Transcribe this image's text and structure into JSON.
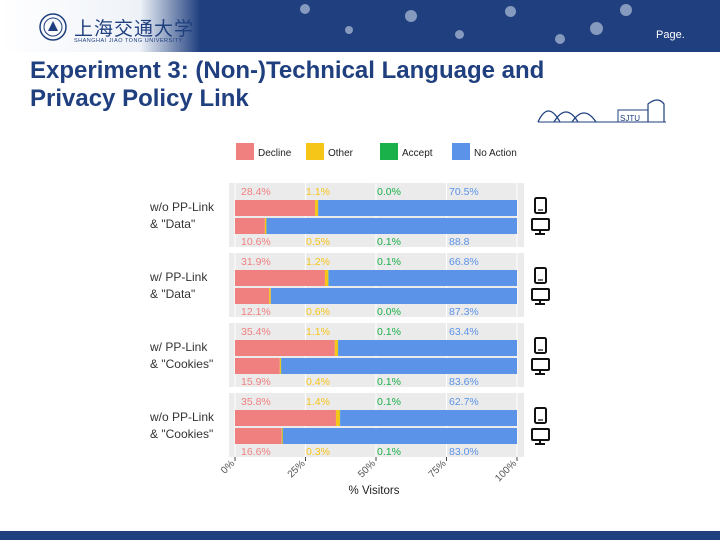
{
  "header": {
    "logo_cn": "上海交通大学",
    "logo_en": "SHANGHAI JIAO TONG UNIVERSITY",
    "page_label": "Page."
  },
  "slide": {
    "title_line1": "Experiment 3: (Non-)Technical Language and",
    "title_line2": "Privacy Policy Link",
    "sketch_label": "SJTU"
  },
  "colors": {
    "brand": "#1f3f7f",
    "decline": "#f08080",
    "other": "#f5c518",
    "accept": "#1ab04a",
    "no_action": "#5b93e8",
    "panel": "#ebebeb"
  },
  "chart_data": {
    "type": "bar",
    "orientation": "horizontal",
    "stacked": true,
    "xlabel": "% Visitors",
    "xlim": [
      0,
      100
    ],
    "xticks": [
      "0%",
      "25%",
      "50%",
      "75%",
      "100%"
    ],
    "legend": [
      "Decline",
      "Other",
      "Accept",
      "No Action"
    ],
    "legend_position": "top",
    "groups": [
      {
        "label_line1": "w/o PP-Link",
        "label_line2": "& \"Data\"",
        "rows": [
          {
            "device": "mobile",
            "values": [
              28.4,
              1.1,
              0.0,
              70.5
            ],
            "labels": [
              "28.4%",
              "1.1%",
              "0.0%",
              "70.5%"
            ]
          },
          {
            "device": "desktop",
            "values": [
              10.6,
              0.5,
              0.1,
              88.8
            ],
            "labels": [
              "10.6%",
              "0.5%",
              "0.1%",
              "88.8"
            ]
          }
        ]
      },
      {
        "label_line1": "w/ PP-Link",
        "label_line2": "& \"Data\"",
        "rows": [
          {
            "device": "mobile",
            "values": [
              31.9,
              1.2,
              0.1,
              66.8
            ],
            "labels": [
              "31.9%",
              "1.2%",
              "0.1%",
              "66.8%"
            ]
          },
          {
            "device": "desktop",
            "values": [
              12.1,
              0.6,
              0.0,
              87.3
            ],
            "labels": [
              "12.1%",
              "0.6%",
              "0.0%",
              "87.3%"
            ]
          }
        ]
      },
      {
        "label_line1": "w/ PP-Link",
        "label_line2": "& \"Cookies\"",
        "rows": [
          {
            "device": "mobile",
            "values": [
              35.4,
              1.1,
              0.1,
              63.4
            ],
            "labels": [
              "35.4%",
              "1.1%",
              "0.1%",
              "63.4%"
            ]
          },
          {
            "device": "desktop",
            "values": [
              15.9,
              0.4,
              0.1,
              83.6
            ],
            "labels": [
              "15.9%",
              "0.4%",
              "0.1%",
              "83.6%"
            ]
          }
        ]
      },
      {
        "label_line1": "w/o PP-Link",
        "label_line2": "& \"Cookies\"",
        "rows": [
          {
            "device": "mobile",
            "values": [
              35.8,
              1.4,
              0.1,
              62.7
            ],
            "labels": [
              "35.8%",
              "1.4%",
              "0.1%",
              "62.7%"
            ]
          },
          {
            "device": "desktop",
            "values": [
              16.6,
              0.3,
              0.1,
              83.0
            ],
            "labels": [
              "16.6%",
              "0.3%",
              "0.1%",
              "83.0%"
            ]
          }
        ]
      }
    ]
  }
}
